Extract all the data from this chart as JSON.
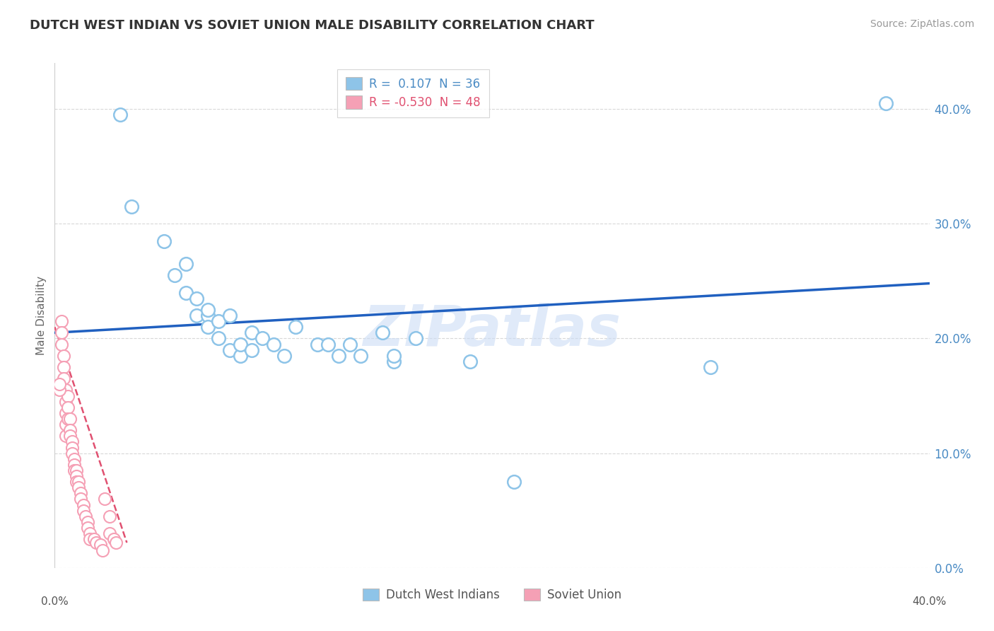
{
  "title": "DUTCH WEST INDIAN VS SOVIET UNION MALE DISABILITY CORRELATION CHART",
  "source": "Source: ZipAtlas.com",
  "ylabel": "Male Disability",
  "y_ticks": [
    0.0,
    0.1,
    0.2,
    0.3,
    0.4
  ],
  "y_tick_labels": [
    "0.0%",
    "10.0%",
    "20.0%",
    "30.0%",
    "40.0%"
  ],
  "xlim": [
    0.0,
    0.4
  ],
  "ylim": [
    0.0,
    0.44
  ],
  "blue_scatter_x": [
    0.035,
    0.05,
    0.055,
    0.06,
    0.06,
    0.065,
    0.065,
    0.07,
    0.07,
    0.07,
    0.075,
    0.075,
    0.08,
    0.08,
    0.085,
    0.085,
    0.09,
    0.09,
    0.095,
    0.1,
    0.105,
    0.11,
    0.12,
    0.125,
    0.13,
    0.135,
    0.14,
    0.15,
    0.155,
    0.155,
    0.165,
    0.19,
    0.3,
    0.38,
    0.03,
    0.21
  ],
  "blue_scatter_y": [
    0.315,
    0.285,
    0.255,
    0.24,
    0.265,
    0.235,
    0.22,
    0.22,
    0.225,
    0.21,
    0.215,
    0.2,
    0.19,
    0.22,
    0.185,
    0.195,
    0.19,
    0.205,
    0.2,
    0.195,
    0.185,
    0.21,
    0.195,
    0.195,
    0.185,
    0.195,
    0.185,
    0.205,
    0.18,
    0.185,
    0.2,
    0.18,
    0.175,
    0.405,
    0.395,
    0.075
  ],
  "pink_scatter_x": [
    0.003,
    0.003,
    0.003,
    0.004,
    0.004,
    0.004,
    0.005,
    0.005,
    0.005,
    0.005,
    0.005,
    0.006,
    0.006,
    0.006,
    0.007,
    0.007,
    0.007,
    0.008,
    0.008,
    0.008,
    0.009,
    0.009,
    0.009,
    0.01,
    0.01,
    0.01,
    0.011,
    0.011,
    0.012,
    0.012,
    0.013,
    0.013,
    0.014,
    0.015,
    0.015,
    0.016,
    0.016,
    0.018,
    0.019,
    0.021,
    0.022,
    0.023,
    0.025,
    0.027,
    0.028,
    0.025,
    0.002,
    0.002
  ],
  "pink_scatter_y": [
    0.215,
    0.205,
    0.195,
    0.185,
    0.175,
    0.165,
    0.155,
    0.145,
    0.135,
    0.125,
    0.115,
    0.15,
    0.14,
    0.13,
    0.13,
    0.12,
    0.115,
    0.11,
    0.105,
    0.1,
    0.095,
    0.09,
    0.085,
    0.085,
    0.08,
    0.075,
    0.075,
    0.07,
    0.065,
    0.06,
    0.055,
    0.05,
    0.045,
    0.04,
    0.035,
    0.03,
    0.025,
    0.025,
    0.022,
    0.02,
    0.015,
    0.06,
    0.03,
    0.025,
    0.022,
    0.045,
    0.155,
    0.16
  ],
  "blue_line_x": [
    0.0,
    0.4
  ],
  "blue_line_y": [
    0.205,
    0.248
  ],
  "pink_line_x": [
    0.0,
    0.033
  ],
  "pink_line_y": [
    0.21,
    0.022
  ],
  "blue_color": "#8ec4e8",
  "pink_color": "#f5a0b5",
  "blue_line_color": "#2060c0",
  "pink_line_color": "#e05070",
  "legend_blue_r": "0.107",
  "legend_blue_n": "36",
  "legend_pink_r": "-0.530",
  "legend_pink_n": "48",
  "legend_label_blue": "Dutch West Indians",
  "legend_label_pink": "Soviet Union",
  "watermark": "ZIPatlas",
  "background_color": "#ffffff",
  "grid_color": "#d8d8d8"
}
